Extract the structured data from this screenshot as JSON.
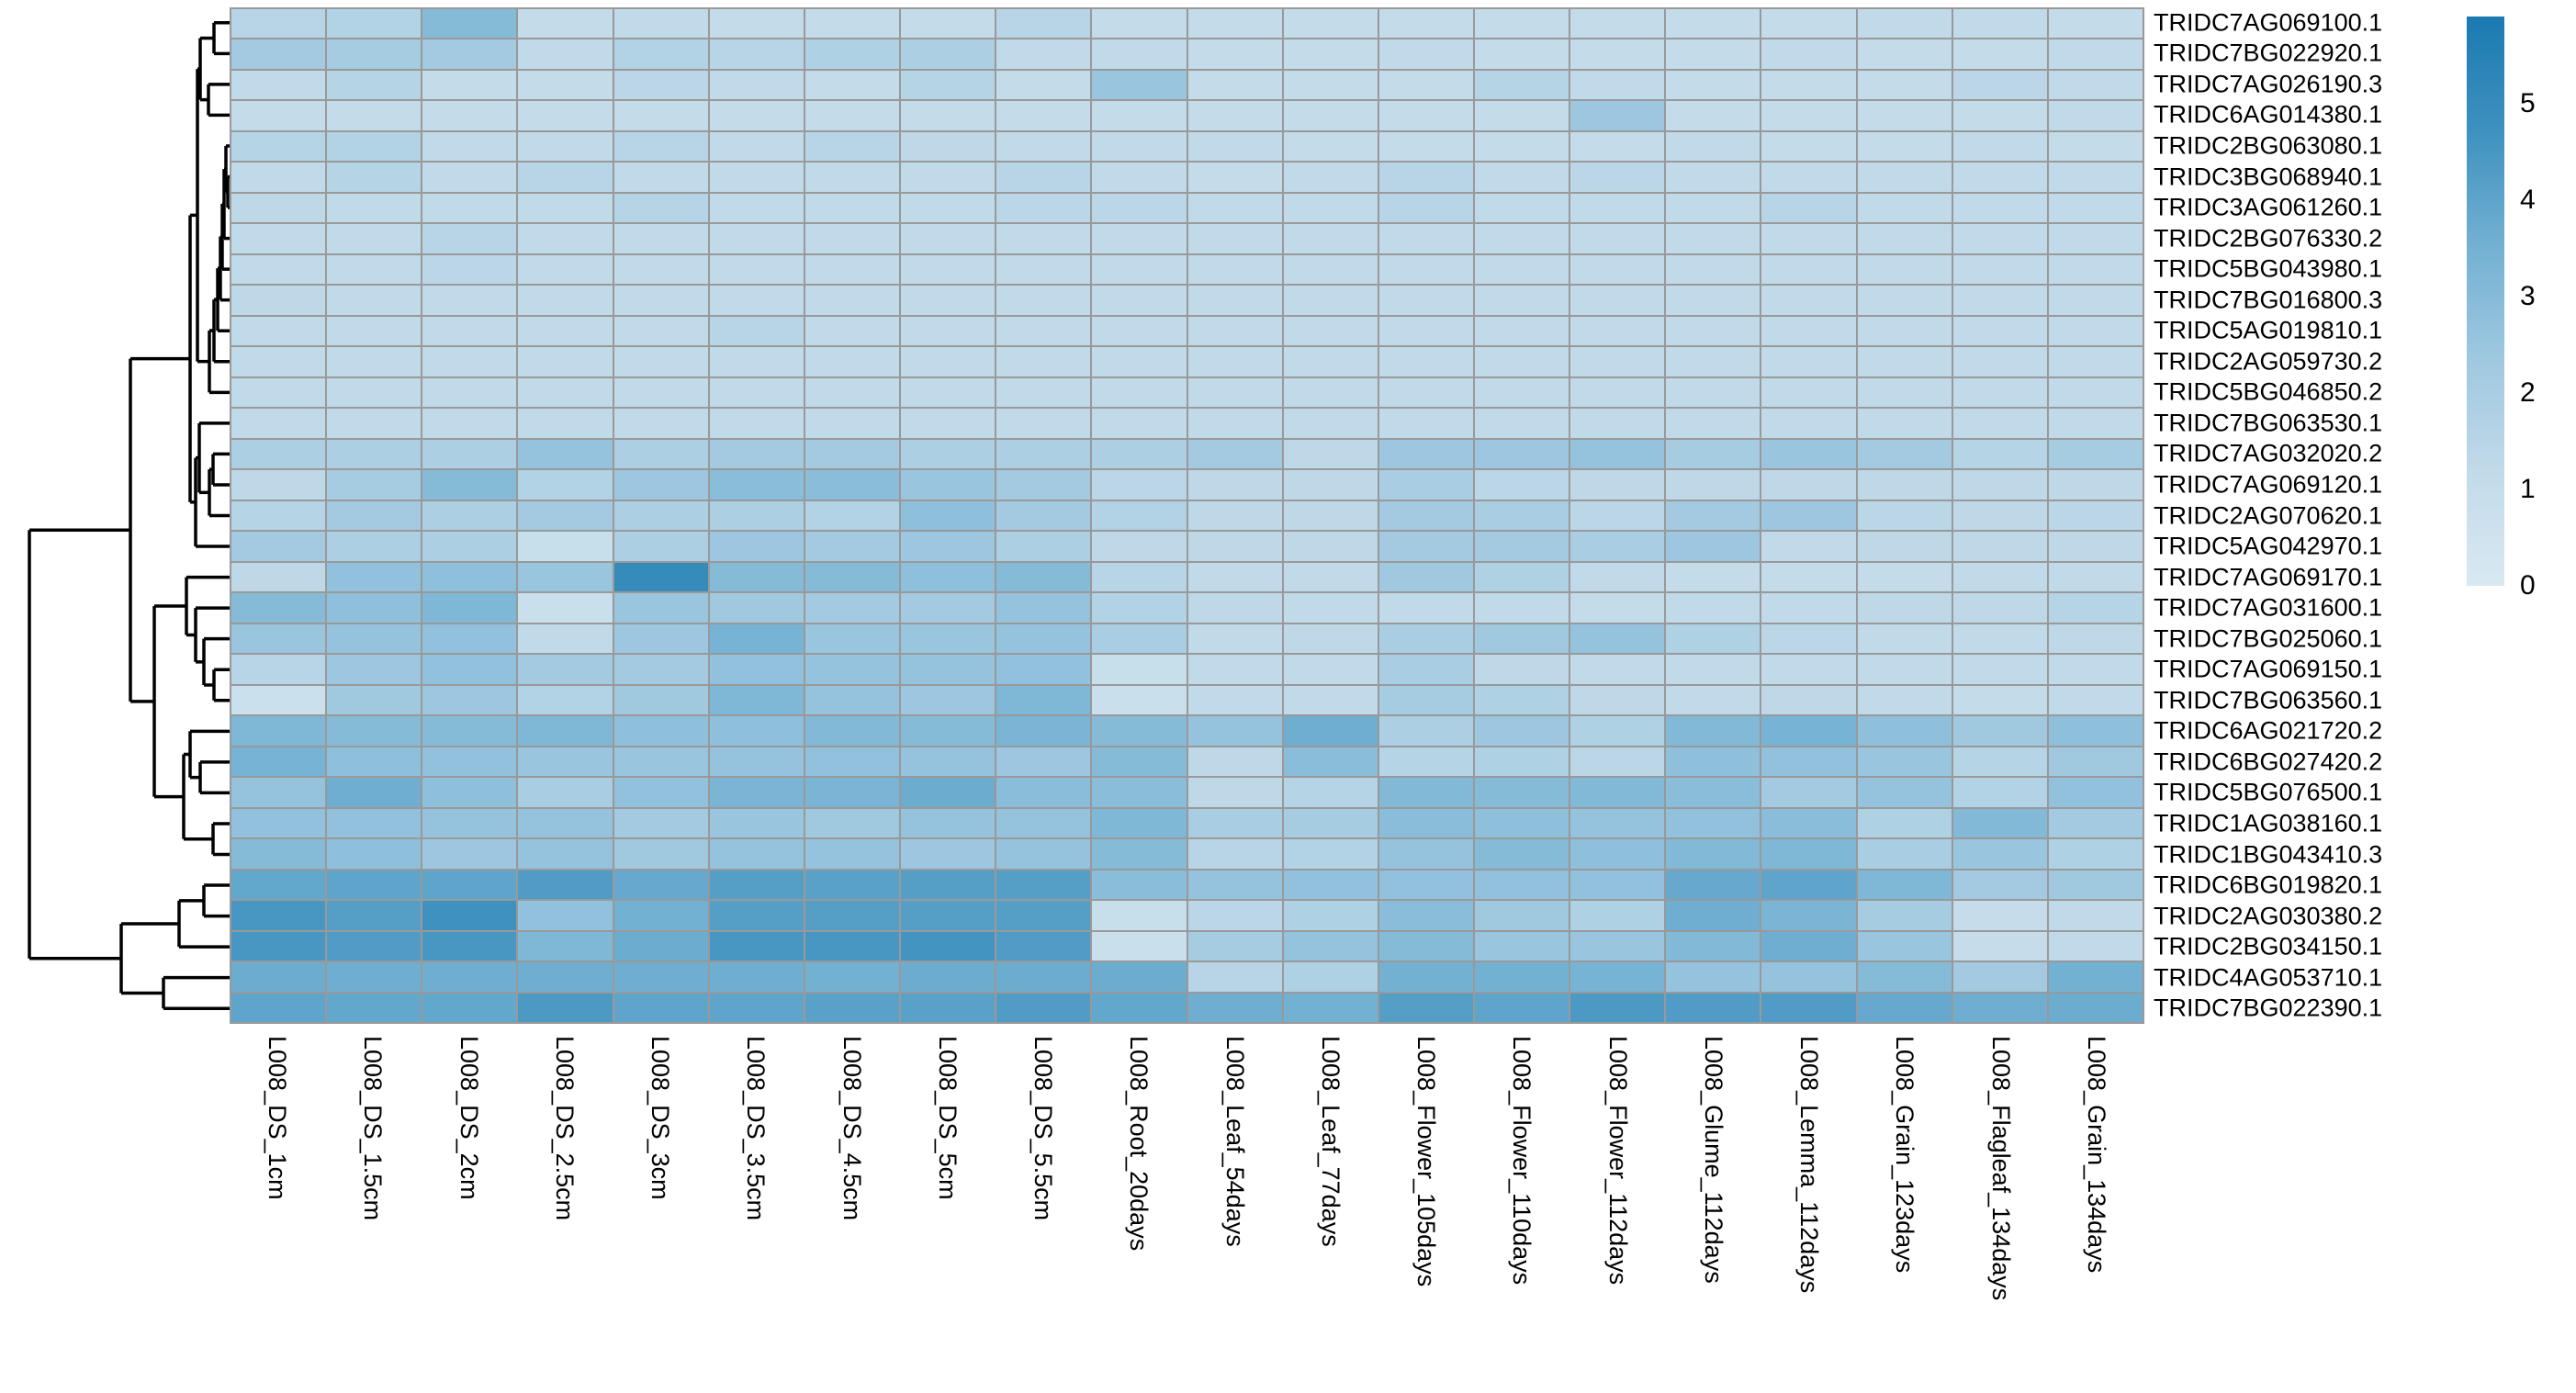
{
  "chart_data": {
    "type": "heatmap",
    "title": "",
    "columns": [
      "L008_DS_1cm",
      "L008_DS_1.5cm",
      "L008_DS_2cm",
      "L008_DS_2.5cm",
      "L008_DS_3cm",
      "L008_DS_3.5cm",
      "L008_DS_4.5cm",
      "L008_DS_5cm",
      "L008_DS_5.5cm",
      "L008_Root_20days",
      "L008_Leaf_54days",
      "L008_Leaf_77days",
      "L008_Flower_105days",
      "L008_Flower_110days",
      "L008_Flower_112days",
      "L008_Glume_112days",
      "L008_Lemma_112days",
      "L008_Grain_123days",
      "L008_Flagleaf_134days",
      "L008_Grain_134days"
    ],
    "rows": [
      "TRIDC7AG069100.1",
      "TRIDC7BG022920.1",
      "TRIDC7AG026190.3",
      "TRIDC6AG014380.1",
      "TRIDC2BG063080.1",
      "TRIDC3BG068940.1",
      "TRIDC3AG061260.1",
      "TRIDC2BG076330.2",
      "TRIDC5BG043980.1",
      "TRIDC7BG016800.3",
      "TRIDC5AG019810.1",
      "TRIDC2AG059730.2",
      "TRIDC5BG046850.2",
      "TRIDC7BG063530.1",
      "TRIDC7AG032020.2",
      "TRIDC7AG069120.1",
      "TRIDC2AG070620.1",
      "TRIDC5AG042970.1",
      "TRIDC7AG069170.1",
      "TRIDC7AG031600.1",
      "TRIDC7BG025060.1",
      "TRIDC7AG069150.1",
      "TRIDC7BG063560.1",
      "TRIDC6AG021720.2",
      "TRIDC6BG027420.2",
      "TRIDC5BG076500.1",
      "TRIDC1AG038160.1",
      "TRIDC1BG043410.3",
      "TRIDC6BG019820.1",
      "TRIDC2AG030380.2",
      "TRIDC2BG034150.1",
      "TRIDC4AG053710.1",
      "TRIDC7BG022390.1"
    ],
    "values": [
      [
        1.5,
        1.7,
        3.0,
        1.1,
        1.2,
        1.1,
        1.1,
        1.1,
        1.5,
        1.1,
        1.1,
        1.1,
        1.1,
        1.1,
        1.1,
        1.1,
        1.1,
        1.2,
        1.2,
        1.1
      ],
      [
        2.2,
        2.1,
        2.2,
        1.2,
        1.7,
        1.5,
        1.8,
        1.9,
        1.2,
        1.2,
        1.1,
        1.1,
        1.2,
        1.1,
        1.1,
        1.1,
        1.2,
        1.1,
        1.1,
        1.2
      ],
      [
        1.2,
        1.6,
        1.1,
        1.1,
        1.4,
        1.2,
        1.1,
        1.6,
        1.1,
        2.5,
        1.1,
        1.1,
        1.1,
        1.6,
        1.2,
        1.1,
        1.1,
        1.1,
        1.4,
        1.2
      ],
      [
        1.1,
        1.1,
        1.1,
        1.1,
        1.1,
        1.1,
        1.1,
        1.1,
        1.1,
        1.1,
        1.1,
        1.1,
        1.1,
        1.1,
        2.4,
        1.1,
        1.1,
        1.1,
        1.1,
        1.2
      ],
      [
        1.6,
        1.7,
        1.2,
        1.2,
        1.5,
        1.2,
        1.5,
        1.3,
        1.2,
        1.2,
        1.2,
        1.1,
        1.1,
        1.1,
        1.1,
        1.2,
        1.1,
        1.1,
        1.2,
        1.1
      ],
      [
        1.2,
        1.6,
        1.2,
        1.5,
        1.2,
        1.2,
        1.2,
        1.2,
        1.5,
        1.2,
        1.1,
        1.2,
        1.5,
        1.2,
        1.4,
        1.2,
        1.2,
        1.2,
        1.2,
        1.2
      ],
      [
        1.3,
        1.2,
        1.2,
        1.2,
        1.6,
        1.2,
        1.2,
        1.2,
        1.4,
        1.4,
        1.2,
        1.2,
        1.5,
        1.2,
        1.2,
        1.2,
        1.5,
        1.2,
        1.2,
        1.2
      ],
      [
        1.2,
        1.2,
        1.5,
        1.2,
        1.2,
        1.2,
        1.2,
        1.2,
        1.2,
        1.2,
        1.2,
        1.2,
        1.2,
        1.2,
        1.2,
        1.2,
        1.2,
        1.2,
        1.2,
        1.2
      ],
      [
        1.2,
        1.2,
        1.4,
        1.2,
        1.2,
        1.2,
        1.2,
        1.2,
        1.2,
        1.2,
        1.2,
        1.2,
        1.2,
        1.2,
        1.2,
        1.2,
        1.2,
        1.2,
        1.2,
        1.2
      ],
      [
        1.3,
        1.2,
        1.2,
        1.2,
        1.2,
        1.2,
        1.2,
        1.2,
        1.2,
        1.2,
        1.2,
        1.2,
        1.2,
        1.2,
        1.2,
        1.2,
        1.2,
        1.2,
        1.2,
        1.2
      ],
      [
        1.2,
        1.2,
        1.2,
        1.2,
        1.2,
        1.5,
        1.2,
        1.2,
        1.2,
        1.2,
        1.2,
        1.2,
        1.2,
        1.2,
        1.2,
        1.2,
        1.2,
        1.2,
        1.2,
        1.2
      ],
      [
        1.2,
        1.2,
        1.2,
        1.2,
        1.2,
        1.2,
        1.2,
        1.2,
        1.2,
        1.2,
        1.2,
        1.2,
        1.2,
        1.2,
        1.2,
        1.2,
        1.2,
        1.2,
        1.2,
        1.2
      ],
      [
        1.2,
        1.2,
        1.2,
        1.2,
        1.2,
        1.2,
        1.2,
        1.2,
        1.2,
        1.2,
        1.2,
        1.2,
        1.2,
        1.2,
        1.2,
        1.2,
        1.2,
        1.2,
        1.2,
        1.2
      ],
      [
        1.2,
        1.2,
        1.2,
        1.2,
        1.2,
        1.2,
        1.2,
        1.2,
        1.2,
        1.2,
        1.2,
        1.2,
        1.2,
        1.2,
        1.2,
        1.2,
        1.2,
        1.2,
        1.2,
        1.2
      ],
      [
        1.9,
        1.9,
        1.9,
        2.6,
        1.9,
        2.2,
        2.2,
        1.9,
        1.9,
        1.9,
        2.2,
        1.3,
        2.4,
        2.4,
        2.6,
        2.1,
        2.5,
        2.2,
        1.6,
        2.1
      ],
      [
        1.3,
        2.1,
        3.0,
        1.7,
        2.4,
        2.9,
        2.9,
        2.5,
        2.2,
        1.4,
        1.3,
        1.3,
        2.0,
        1.4,
        1.3,
        1.3,
        1.3,
        1.3,
        1.3,
        1.3
      ],
      [
        1.6,
        2.2,
        1.9,
        2.2,
        1.9,
        1.9,
        1.7,
        2.8,
        2.2,
        1.7,
        1.3,
        1.3,
        2.2,
        2.0,
        1.4,
        2.2,
        2.4,
        1.4,
        1.3,
        1.4
      ],
      [
        2.2,
        1.9,
        1.9,
        0.9,
        1.9,
        2.4,
        2.2,
        2.4,
        1.9,
        1.3,
        1.3,
        1.3,
        2.2,
        2.2,
        2.0,
        2.4,
        1.2,
        1.3,
        1.3,
        1.3
      ],
      [
        1.3,
        2.7,
        2.8,
        2.5,
        5.0,
        3.0,
        3.0,
        2.8,
        3.0,
        1.5,
        1.2,
        1.2,
        2.3,
        1.8,
        1.2,
        1.1,
        1.1,
        1.1,
        1.2,
        1.2
      ],
      [
        3.0,
        2.8,
        3.2,
        0.8,
        2.5,
        2.3,
        2.2,
        2.2,
        2.6,
        1.7,
        1.3,
        1.2,
        1.2,
        1.2,
        1.1,
        1.2,
        1.2,
        1.3,
        1.3,
        1.6
      ],
      [
        2.5,
        2.6,
        2.7,
        1.2,
        2.4,
        3.4,
        2.5,
        2.5,
        2.6,
        2.0,
        1.2,
        1.3,
        2.0,
        2.3,
        2.6,
        1.8,
        1.4,
        1.2,
        1.2,
        1.3
      ],
      [
        1.5,
        2.4,
        2.7,
        2.2,
        2.2,
        2.7,
        2.6,
        2.6,
        2.7,
        0.9,
        1.2,
        1.2,
        2.0,
        1.3,
        1.2,
        1.2,
        1.2,
        1.2,
        1.2,
        1.2
      ],
      [
        0.7,
        2.3,
        2.4,
        1.7,
        2.3,
        3.2,
        2.6,
        2.4,
        3.2,
        0.8,
        1.2,
        1.2,
        2.1,
        1.8,
        1.3,
        1.2,
        1.3,
        1.2,
        1.1,
        1.2
      ],
      [
        3.2,
        3.0,
        3.0,
        3.2,
        2.8,
        2.8,
        3.1,
        3.0,
        3.3,
        3.0,
        2.6,
        3.6,
        1.9,
        2.4,
        1.8,
        3.1,
        3.4,
        2.8,
        2.3,
        2.8
      ],
      [
        3.4,
        2.8,
        2.7,
        2.5,
        2.5,
        2.6,
        2.7,
        2.6,
        2.4,
        3.0,
        1.3,
        2.9,
        1.6,
        1.8,
        1.4,
        2.8,
        2.7,
        2.5,
        1.6,
        2.3
      ],
      [
        2.6,
        3.6,
        2.8,
        2.0,
        2.7,
        3.3,
        3.3,
        3.7,
        2.9,
        2.9,
        1.3,
        1.6,
        3.1,
        3.0,
        3.1,
        2.9,
        2.2,
        2.6,
        1.7,
        2.7
      ],
      [
        2.7,
        2.7,
        2.6,
        2.6,
        2.2,
        2.5,
        2.3,
        2.6,
        2.6,
        3.2,
        2.0,
        2.1,
        2.9,
        2.8,
        2.6,
        2.7,
        2.9,
        1.8,
        3.1,
        2.2
      ],
      [
        3.0,
        2.8,
        2.4,
        2.6,
        2.3,
        2.6,
        2.6,
        2.4,
        2.6,
        3.0,
        1.5,
        1.7,
        2.6,
        3.0,
        2.8,
        3.1,
        3.2,
        2.0,
        2.5,
        1.8
      ],
      [
        3.9,
        4.0,
        4.0,
        4.3,
        3.8,
        4.2,
        4.1,
        4.2,
        4.2,
        2.9,
        2.6,
        2.7,
        2.7,
        2.7,
        2.7,
        3.8,
        4.0,
        3.2,
        2.2,
        2.3
      ],
      [
        4.5,
        4.2,
        4.7,
        2.7,
        3.5,
        4.2,
        4.2,
        4.2,
        4.2,
        0.9,
        1.4,
        1.8,
        2.9,
        2.3,
        1.8,
        3.6,
        3.3,
        2.1,
        1.0,
        1.2
      ],
      [
        4.5,
        4.3,
        4.5,
        3.2,
        3.7,
        4.5,
        4.5,
        4.6,
        4.3,
        0.8,
        2.1,
        2.6,
        3.0,
        2.5,
        2.5,
        3.1,
        3.6,
        2.5,
        1.0,
        1.2
      ],
      [
        3.7,
        3.6,
        3.6,
        3.6,
        3.6,
        3.6,
        3.5,
        3.7,
        3.7,
        3.7,
        1.5,
        1.8,
        3.5,
        3.5,
        3.4,
        2.6,
        2.6,
        3.0,
        2.2,
        3.5
      ],
      [
        4.0,
        3.9,
        3.9,
        4.4,
        4.0,
        4.0,
        4.1,
        4.1,
        4.3,
        3.9,
        3.6,
        3.5,
        4.2,
        4.0,
        4.4,
        4.3,
        4.3,
        3.8,
        3.6,
        3.7
      ]
    ],
    "colorbar": {
      "ticks": [
        0,
        1,
        2,
        3,
        4,
        5
      ],
      "vmin": 0,
      "vmax": 5.9
    },
    "colormap_stops": [
      [
        0.0,
        "#d9e9f2"
      ],
      [
        0.2,
        "#c2dae9"
      ],
      [
        0.4,
        "#9ec8e0"
      ],
      [
        0.6,
        "#72b0d2"
      ],
      [
        0.8,
        "#3e91bf"
      ],
      [
        1.0,
        "#1a7ab0"
      ]
    ],
    "gridline_color": "#999999",
    "dendrogram_color": "#000000",
    "row_dendrogram": [
      32,
      [
        142,
        [
          207,
          [
            215,
            [
              218,
              [
                233,
                1,
                2
              ],
              [
                227,
                3,
                4
              ]
            ],
            [
              228,
              [
                233,
                [
                  237,
                  [
                    240,
                    [
                      242,
                      [
                        244,
                        [
                          246,
                          5,
                          [
                            248,
                            6,
                            7
                          ]
                        ],
                        8
                      ],
                      9
                    ],
                    10
                  ],
                  11
                ],
                12
              ],
              13
            ]
          ],
          [
            213,
            [
              217,
              14,
              [
                228,
                [
                  232,
                  15,
                  16
                ],
                17
              ]
            ],
            18
          ]
        ],
        [
          168,
          [
            203,
            19,
            [
              213,
              20,
              [
                222,
                21,
                [
                  233,
                  22,
                  23
                ]
              ]
            ]
          ],
          [
            200,
            [
              207,
              24,
              [
                218,
                25,
                26
              ]
            ],
            [
              232,
              27,
              28
            ]
          ]
        ]
      ],
      [
        132,
        [
          195,
          [
            222,
            29,
            30
          ],
          31
        ],
        [
          178,
          32,
          33
        ]
      ]
    ],
    "legend_position": "right",
    "grid": "on"
  }
}
